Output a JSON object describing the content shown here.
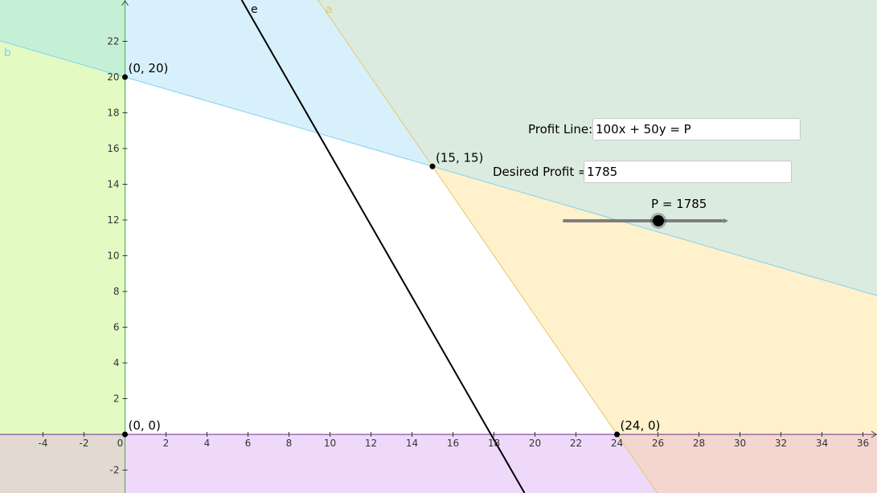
{
  "colors": {
    "region_b": "#c6f0d6",
    "region_a": "#dcebdf",
    "region_blue": "#d8f0fb",
    "region_left_green": "#e3fac2",
    "region_yellow": "#fff1cc",
    "region_purple": "#efd9fa",
    "region_pink": "#f4d6d0",
    "region_tan": "#e2d9d3",
    "line_a": "#e2c96a",
    "line_b": "#7fd3f0",
    "line_e": "#000000",
    "axis_x": "#6a2a8a",
    "axis_y": "#4aa84a"
  },
  "line_labels": {
    "a": "a",
    "b": "b",
    "e": "e"
  },
  "points": [
    {
      "label": "(0, 20)",
      "x": 0,
      "y": 20
    },
    {
      "label": "(15, 15)",
      "x": 15,
      "y": 15
    },
    {
      "label": "(0, 0)",
      "x": 0,
      "y": 0
    },
    {
      "label": "(24, 0)",
      "x": 24,
      "y": 0
    }
  ],
  "x_ticks": [
    "-4",
    "-2",
    "0",
    "2",
    "4",
    "6",
    "8",
    "10",
    "12",
    "14",
    "16",
    "18",
    "20",
    "22",
    "24",
    "26",
    "28",
    "30",
    "32",
    "34",
    "36"
  ],
  "y_ticks": [
    "-2",
    "2",
    "4",
    "6",
    "8",
    "10",
    "12",
    "14",
    "16",
    "18",
    "20",
    "22"
  ],
  "profit_line": {
    "label": "Profit Line:",
    "value": "100x + 50y = P"
  },
  "desired_profit": {
    "label": "Desired Profit =",
    "value": "1785"
  },
  "slider": {
    "label": "P = 1785",
    "value": 1785,
    "min": 0,
    "max": 3000
  }
}
